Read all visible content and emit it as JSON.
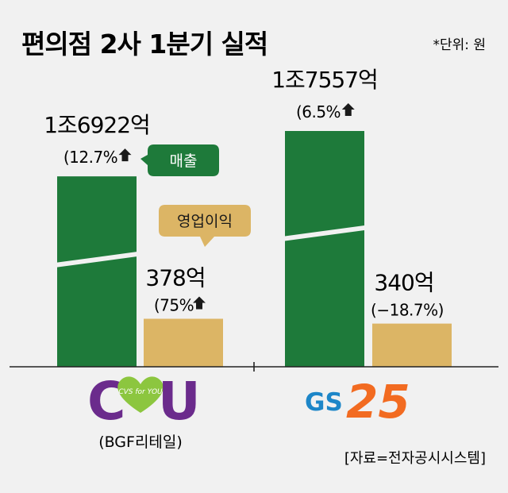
{
  "header": {
    "title": "편의점 2사 1분기 실적",
    "unit": "*단위: 원"
  },
  "callouts": {
    "sales": "매출",
    "operating_profit": "영업이익"
  },
  "companies": [
    {
      "logo_text": "CU",
      "logo_heart_text": "CVS for YOU",
      "subtitle": "(BGF리테일)",
      "sales_label": "1조6922억",
      "sales_change": "(12.7%",
      "profit_label": "378억",
      "profit_change": "(75%"
    },
    {
      "logo_gs": "GS",
      "logo_25": "25",
      "sales_label": "1조7557억",
      "sales_change": "(6.5%",
      "profit_label": "340억",
      "profit_change": "(−18.7%)"
    }
  ],
  "source": "[자료=전자공시시스템]",
  "colors": {
    "sales": "#1e7a3a",
    "profit": "#dcb565",
    "callout_sales": "#1e7a3a",
    "callout_profit": "#dcb565",
    "cu_purple": "#6b2b8c",
    "cu_green": "#8cc63f",
    "gs_blue": "#1d86c8",
    "gs_orange": "#f26b21",
    "background": "#f1f1f1"
  },
  "chart_data": {
    "type": "bar",
    "categories": [
      "CU (BGF리테일)",
      "GS25"
    ],
    "series": [
      {
        "name": "매출",
        "values": [
          16922,
          17557
        ],
        "yoy_change_pct": [
          12.7,
          6.5
        ]
      },
      {
        "name": "영업이익",
        "values": [
          378,
          340
        ],
        "yoy_change_pct": [
          75,
          -18.7
        ]
      }
    ],
    "value_unit": "억원",
    "axis_break": true,
    "grid": false,
    "legend": "callouts"
  }
}
